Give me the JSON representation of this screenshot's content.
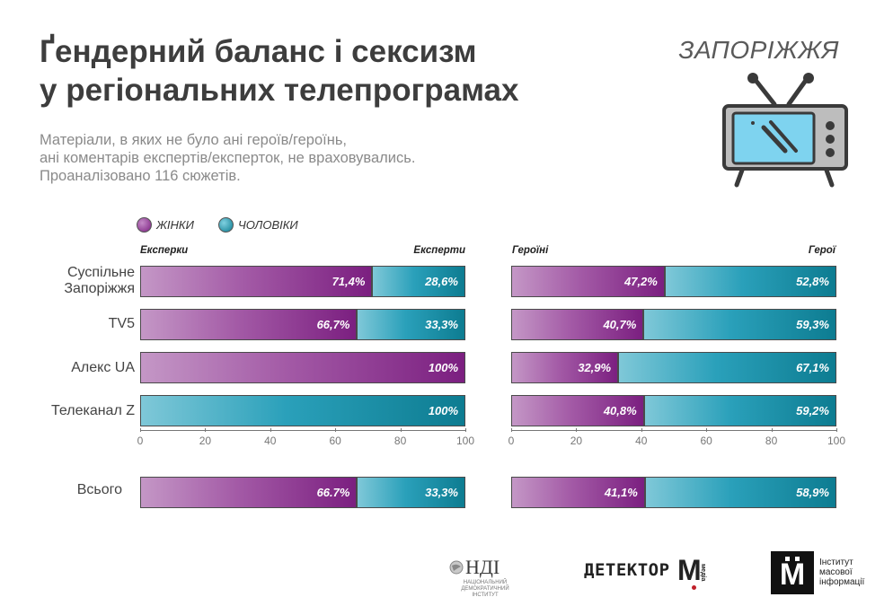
{
  "header": {
    "title_lines": [
      "Ґендерний баланс і сексизм",
      "у регіональних телепрограмах"
    ],
    "subtitle_lines": [
      "Матеріали, в яких не було ані героїв/героїнь,",
      "ані коментарів експертів/експерток, не враховувались.",
      "Проаналізовано 116 сюжетів."
    ],
    "region": "ЗАПОРІЖЖЯ",
    "illustration_icon": "tv-icon"
  },
  "legend": {
    "women": "ЖІНКИ",
    "men": "ЧОЛОВІКИ"
  },
  "colors": {
    "women": "#8a2d8f",
    "men": "#1a93ad"
  },
  "chart_data": [
    {
      "type": "bar",
      "orientation": "horizontal-stacked-percent",
      "left_header": "Експерки",
      "right_header": "Експерти",
      "categories": [
        "Суспільне Запоріжжя",
        "TV5",
        "Алекс UA",
        "Телеканал Z"
      ],
      "category_lines": [
        [
          "Суспільне",
          "Запоріжжя"
        ],
        [
          "TV5"
        ],
        [
          "Алекс UA"
        ],
        [
          "Телеканал Z"
        ]
      ],
      "series": [
        {
          "name": "ЖІНКИ",
          "values": [
            71.4,
            66.7,
            100,
            0
          ],
          "labels": [
            "71,4%",
            "66,7%",
            "100%",
            ""
          ]
        },
        {
          "name": "ЧОЛОВІКИ",
          "values": [
            28.6,
            33.3,
            0,
            100
          ],
          "labels": [
            "28,6%",
            "33,3%",
            "",
            "100%"
          ]
        }
      ],
      "total": {
        "label": "Всього",
        "women": 66.7,
        "men": 33.3,
        "women_label": "66.7%",
        "men_label": "33,3%"
      },
      "xlim": [
        0,
        100
      ],
      "xticks": [
        "0",
        "20",
        "40",
        "60",
        "80",
        "100"
      ]
    },
    {
      "type": "bar",
      "orientation": "horizontal-stacked-percent",
      "left_header": "Героїні",
      "right_header": "Герої",
      "categories": [
        "Суспільне Запоріжжя",
        "TV5",
        "Алекс UA",
        "Телеканал Z"
      ],
      "series": [
        {
          "name": "ЖІНКИ",
          "values": [
            47.2,
            40.7,
            32.9,
            40.8
          ],
          "labels": [
            "47,2%",
            "40,7%",
            "32,9%",
            "40,8%"
          ]
        },
        {
          "name": "ЧОЛОВІКИ",
          "values": [
            52.8,
            59.3,
            67.1,
            59.2
          ],
          "labels": [
            "52,8%",
            "59,3%",
            "67,1%",
            "59,2%"
          ]
        }
      ],
      "total": {
        "label": "Всього",
        "women": 41.1,
        "men": 58.9,
        "women_label": "41,1%",
        "men_label": "58,9%"
      },
      "xlim": [
        0,
        100
      ],
      "xticks": [
        "0",
        "20",
        "40",
        "60",
        "80",
        "100"
      ]
    }
  ],
  "footer": {
    "logo1_text": "НДІ",
    "logo1_sub": [
      "НАЦІОНАЛЬНИЙ",
      "ДЕМОКРАТИЧНИЙ",
      "ІНСТИТУТ"
    ],
    "logo2_text": "ДЕТЕКТОР",
    "logo2_letter": "М",
    "logo2_small": "медіа",
    "logo3_letter": "М",
    "logo3_lines": [
      "Інститут",
      "масової",
      "інформації"
    ]
  }
}
